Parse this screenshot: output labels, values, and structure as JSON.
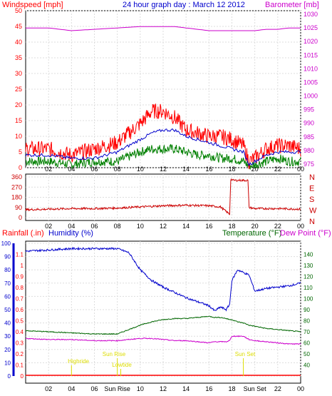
{
  "colors": {
    "wind_speed": "#ff0000",
    "wind_avg": "#0000cc",
    "wind_low": "#008000",
    "barometer": "#cc00cc",
    "direction": "#cc0000",
    "rainfall": "#ff0000",
    "humidity": "#0000cc",
    "temperature": "#006600",
    "dew_point": "#cc00cc",
    "events": "#dddd00",
    "grid": "#dddddd",
    "frame": "#000000"
  },
  "chart_data": [
    {
      "type": "line",
      "title": "24 hour graph day : March 12 2012",
      "ylabel": "Windspeed [mph]",
      "y2label": "Barometer [mb]",
      "ylim": [
        0,
        50
      ],
      "y2lim": [
        975,
        1030
      ],
      "xlim": [
        0,
        24
      ],
      "x_ticks": [
        "02",
        "04",
        "06",
        "08",
        "10",
        "12",
        "14",
        "16",
        "18",
        "20",
        "22",
        "00"
      ],
      "y_ticks": [
        "0",
        "5",
        "10",
        "15",
        "20",
        "25",
        "30",
        "35",
        "40",
        "45",
        "50"
      ],
      "y2_ticks": [
        "975",
        "980",
        "985",
        "990",
        "995",
        "1000",
        "1005",
        "1010",
        "1015",
        "1020",
        "1025",
        "1030"
      ],
      "grid": true,
      "x": [
        0,
        2,
        4,
        6,
        8,
        10,
        11,
        12,
        13,
        14,
        15,
        16,
        17,
        18,
        19,
        19.5,
        20,
        21,
        22,
        23,
        24
      ],
      "series": [
        {
          "values": [
            6,
            6,
            4,
            6,
            8,
            14,
            18,
            18,
            16,
            12,
            11,
            10,
            10,
            9,
            7,
            2,
            3,
            6,
            7,
            7,
            6
          ]
        },
        {
          "values": [
            4,
            4,
            3,
            3,
            5,
            9,
            11,
            12,
            12,
            10,
            9,
            8,
            7,
            6,
            5,
            1,
            2,
            4,
            5,
            5,
            5
          ]
        },
        {
          "values": [
            2,
            2,
            1,
            2,
            2,
            5,
            6,
            6,
            6,
            5,
            4,
            4,
            3,
            3,
            2,
            0.5,
            1,
            2,
            3,
            2,
            2
          ]
        },
        {
          "values": [
            1026,
            1026,
            1025,
            1025.5,
            1026,
            1026.5,
            1026.5,
            1026.5,
            1026.5,
            1026,
            1025.5,
            1025,
            1025,
            1025,
            1025,
            1025,
            1025,
            1025.5,
            1025.5,
            1026,
            1026
          ]
        }
      ]
    },
    {
      "type": "line",
      "ylim": [
        0,
        360
      ],
      "y_ticks": [
        "0",
        "90",
        "180",
        "270",
        "360"
      ],
      "y2_ticks": [
        "N",
        "W",
        "S",
        "E",
        "N"
      ],
      "x_ticks": [
        "02",
        "04",
        "06",
        "08",
        "10",
        "12",
        "14",
        "16",
        "18",
        "20",
        "22",
        "00"
      ],
      "x": [
        0,
        2,
        4,
        6,
        8,
        10,
        12,
        14,
        16,
        17,
        17.8,
        17.9,
        18.1,
        18.6,
        19.4,
        19.5,
        20,
        22,
        24
      ],
      "series": [
        {
          "values": [
            70,
            75,
            80,
            80,
            85,
            95,
            105,
            110,
            105,
            95,
            30,
            340,
            330,
            330,
            330,
            90,
            80,
            80,
            75
          ]
        }
      ]
    },
    {
      "type": "line",
      "ylabel": "Rainfall (.in)",
      "ylabel2": "Humidity (%)",
      "y2label": "Temperature (°F)",
      "y3label": "Dew Point (°F)",
      "rain_lim": [
        0,
        1.2
      ],
      "humidity_lim": [
        0,
        100
      ],
      "temp_lim": [
        30,
        150
      ],
      "rain_ticks": [
        "0",
        "0.1",
        "0.2",
        "0.3",
        "0.4",
        "0.5",
        "0.6",
        "0.7",
        "0.8",
        "0.9",
        "1",
        "1.1"
      ],
      "humidity_ticks": [
        "0",
        "10",
        "20",
        "30",
        "40",
        "50",
        "60",
        "70",
        "80",
        "90",
        "100"
      ],
      "temp_ticks": [
        "40",
        "50",
        "60",
        "70",
        "80",
        "90",
        "100",
        "110",
        "120",
        "130",
        "140"
      ],
      "x_ticks": [
        "02",
        "04",
        "06",
        "Sun Rise",
        "10",
        "12",
        "14",
        "16",
        "18",
        "Sun Set",
        "22",
        "00"
      ],
      "x": [
        0,
        2,
        4,
        6,
        7,
        8,
        9,
        10,
        11,
        12,
        13,
        14,
        15,
        16,
        16.5,
        17,
        17.5,
        17.8,
        18,
        18.5,
        19,
        19.5,
        20,
        21,
        22,
        23,
        24
      ],
      "series": [
        {
          "values": [
            0,
            0,
            0,
            0,
            0,
            0,
            0,
            0,
            0,
            0,
            0,
            0,
            0,
            0,
            0,
            0,
            0,
            0,
            0,
            0,
            0,
            0,
            0,
            0,
            0,
            0,
            0
          ]
        },
        {
          "values": [
            94,
            95,
            96,
            96,
            96,
            96,
            93,
            80,
            72,
            67,
            63,
            59,
            56,
            53,
            49,
            52,
            50,
            54,
            72,
            80,
            78,
            76,
            64,
            66,
            67,
            68,
            70
          ]
        },
        {
          "values": [
            71,
            70,
            69,
            68,
            68,
            68,
            72,
            76,
            79,
            81,
            82,
            82,
            83,
            84,
            83,
            83,
            82,
            81,
            81,
            79,
            78,
            76,
            75,
            73,
            72,
            71,
            70
          ]
        },
        {
          "values": [
            64,
            63,
            63,
            62,
            62,
            62,
            63,
            64,
            64,
            63,
            62,
            62,
            61,
            60,
            61,
            61,
            61,
            62,
            66,
            66,
            66,
            63,
            62,
            61,
            60,
            59,
            59
          ]
        }
      ],
      "annotations": [
        "Sun Rise",
        "Highride",
        "Lowtide",
        "Sun Set"
      ]
    }
  ]
}
